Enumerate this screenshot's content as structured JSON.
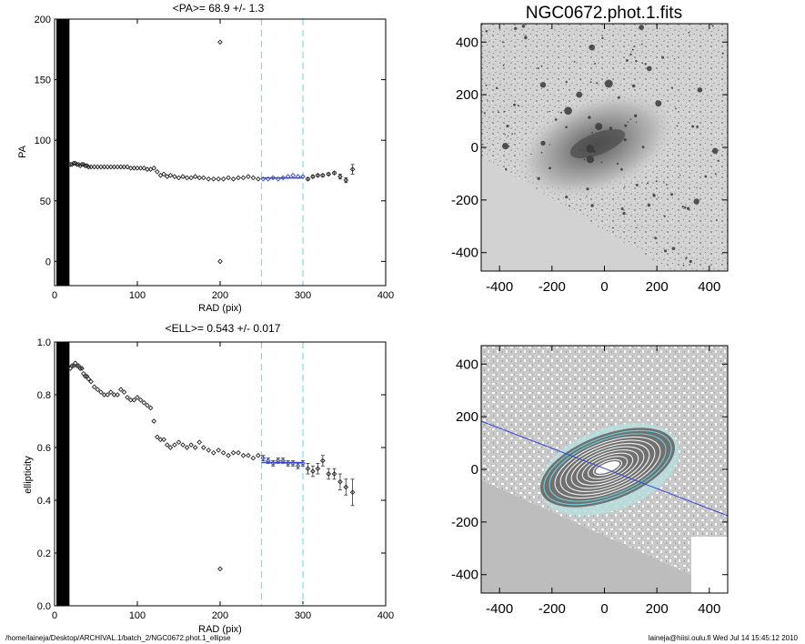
{
  "footer": {
    "path": "/home/laineja/Desktop/ARCHIVAL.1/batch_2/NGC0672.phot.1_ellipse",
    "user_date": "laineja@hiisi.oulu.fi  Wed Jul 14 15:45:12 2010"
  },
  "image_panels": {
    "title": "NGC0672.phot.1.fits",
    "xticks": [
      "-400",
      "-200",
      "0",
      "200",
      "400"
    ],
    "yticks": [
      "400",
      "200",
      "0",
      "-200",
      "-400"
    ],
    "range": [
      -470,
      470
    ]
  },
  "chart_data": [
    {
      "type": "scatter",
      "title": "<PA>=  68.9 +/-   1.3",
      "xlabel": "RAD (pix)",
      "ylabel": "PA",
      "xlim": [
        0,
        400
      ],
      "ylim": [
        -20,
        200
      ],
      "xticks": [
        0,
        100,
        200,
        300,
        400
      ],
      "yticks": [
        0,
        50,
        100,
        150,
        200
      ],
      "xtick_labels": [
        "0",
        "100",
        "200",
        "300",
        "400"
      ],
      "ytick_labels": [
        "0",
        "50",
        "100",
        "150",
        "200"
      ],
      "vlines": [
        250,
        300
      ],
      "fit_range": [
        250,
        300
      ],
      "fit_value": 68.9,
      "series": [
        {
          "x": [
            1,
            3,
            5,
            7,
            9,
            11,
            13,
            15,
            17,
            19,
            21,
            23,
            25,
            27,
            29,
            31,
            33,
            35,
            37,
            39,
            41,
            44,
            48,
            52,
            56,
            60,
            64,
            68,
            72,
            76,
            80,
            84,
            88,
            92,
            96,
            100,
            104,
            108,
            112,
            116,
            120,
            124,
            128,
            132,
            136,
            140,
            145,
            150,
            155,
            160,
            165,
            170,
            175,
            180,
            186,
            192,
            198,
            204,
            210,
            216,
            222,
            228,
            234,
            240,
            246,
            252,
            258,
            264,
            270,
            276,
            282,
            288,
            294,
            300,
            306,
            312,
            318,
            324,
            331,
            338,
            345,
            352,
            360
          ],
          "y": [
            80,
            80,
            81,
            80,
            79,
            80,
            81,
            80,
            79,
            80,
            80,
            81,
            81,
            80,
            80,
            79,
            80,
            80,
            79,
            79,
            78,
            78,
            78,
            78,
            78,
            78,
            78,
            78,
            78,
            78,
            78,
            78,
            78,
            77,
            77,
            77,
            77,
            77,
            76,
            76,
            77,
            74,
            71,
            72,
            70,
            71,
            70,
            69,
            70,
            69,
            69,
            70,
            69,
            69,
            68,
            68,
            68,
            68,
            69,
            68,
            69,
            69,
            70,
            69,
            68,
            68,
            68,
            69,
            68,
            69,
            70,
            71,
            70,
            70,
            68,
            70,
            71,
            71,
            72,
            73,
            70,
            67,
            76
          ],
          "err": [
            0,
            0,
            0,
            0,
            0,
            0,
            0,
            0,
            0,
            0,
            0,
            0,
            0,
            0,
            0,
            0,
            0,
            0,
            0,
            0,
            0,
            0,
            0,
            0,
            0,
            0,
            0,
            0,
            0,
            0,
            0,
            0,
            0,
            0,
            0,
            0,
            0,
            0,
            0,
            0,
            0,
            0,
            0,
            0,
            0,
            0,
            0,
            0,
            0,
            0,
            0,
            0,
            0,
            0,
            0,
            0,
            0,
            0,
            0,
            0,
            0,
            0,
            0,
            0,
            0,
            0,
            0,
            0,
            0,
            0,
            0,
            0,
            0,
            0,
            1,
            1,
            1,
            1,
            1,
            1,
            2,
            2,
            4
          ]
        },
        {
          "name": "outliers",
          "x": [
            200,
            200
          ],
          "y": [
            181,
            0
          ],
          "err": [
            0,
            0
          ]
        }
      ]
    },
    {
      "type": "scatter",
      "title": "<ELL>= 0.543 +/-  0.017",
      "xlabel": "RAD (pix)",
      "ylabel": "ellipticity",
      "xlim": [
        0,
        400
      ],
      "ylim": [
        0,
        1
      ],
      "xticks": [
        0,
        100,
        200,
        300,
        400
      ],
      "yticks": [
        0,
        0.2,
        0.4,
        0.6,
        0.8,
        1
      ],
      "xtick_labels": [
        "0",
        "100",
        "200",
        "300",
        "400"
      ],
      "ytick_labels": [
        "0.0",
        "0.2",
        "0.4",
        "0.6",
        "0.8",
        "1.0"
      ],
      "vlines": [
        250,
        300
      ],
      "fit_range": [
        250,
        300
      ],
      "fit_value": 0.543,
      "series": [
        {
          "x": [
            1,
            3,
            5,
            7,
            9,
            11,
            13,
            15,
            17,
            19,
            21,
            23,
            25,
            27,
            29,
            31,
            33,
            35,
            37,
            39,
            41,
            44,
            48,
            52,
            56,
            60,
            64,
            68,
            72,
            76,
            80,
            84,
            88,
            92,
            96,
            100,
            104,
            108,
            112,
            116,
            120,
            124,
            128,
            132,
            136,
            140,
            145,
            150,
            155,
            160,
            165,
            170,
            175,
            180,
            186,
            192,
            198,
            204,
            210,
            216,
            222,
            228,
            234,
            240,
            246,
            252,
            258,
            264,
            270,
            276,
            282,
            288,
            294,
            300,
            306,
            312,
            318,
            324,
            331,
            338,
            345,
            352,
            360
          ],
          "y": [
            0.89,
            0.89,
            0.9,
            0.88,
            0.9,
            0.89,
            0.88,
            0.9,
            0.89,
            0.9,
            0.91,
            0.91,
            0.92,
            0.91,
            0.91,
            0.9,
            0.9,
            0.88,
            0.87,
            0.87,
            0.86,
            0.85,
            0.83,
            0.82,
            0.81,
            0.8,
            0.8,
            0.81,
            0.8,
            0.8,
            0.82,
            0.81,
            0.79,
            0.78,
            0.78,
            0.79,
            0.78,
            0.77,
            0.76,
            0.75,
            0.7,
            0.64,
            0.63,
            0.63,
            0.61,
            0.6,
            0.61,
            0.62,
            0.61,
            0.6,
            0.61,
            0.6,
            0.62,
            0.6,
            0.59,
            0.58,
            0.59,
            0.58,
            0.57,
            0.58,
            0.58,
            0.57,
            0.57,
            0.56,
            0.57,
            0.56,
            0.55,
            0.54,
            0.55,
            0.55,
            0.54,
            0.54,
            0.53,
            0.54,
            0.52,
            0.51,
            0.52,
            0.55,
            0.5,
            0.5,
            0.47,
            0.45,
            0.43
          ],
          "err": [
            0,
            0,
            0,
            0,
            0,
            0,
            0,
            0,
            0,
            0,
            0,
            0,
            0,
            0,
            0,
            0,
            0,
            0,
            0,
            0,
            0,
            0,
            0,
            0,
            0,
            0,
            0,
            0,
            0,
            0,
            0,
            0,
            0,
            0,
            0,
            0,
            0,
            0,
            0,
            0,
            0,
            0,
            0,
            0,
            0,
            0,
            0,
            0,
            0,
            0,
            0,
            0,
            0,
            0,
            0,
            0,
            0,
            0,
            0,
            0,
            0,
            0,
            0,
            0,
            0,
            0.01,
            0.01,
            0.01,
            0.01,
            0.01,
            0.01,
            0.01,
            0.01,
            0.01,
            0.02,
            0.02,
            0.02,
            0.02,
            0.02,
            0.02,
            0.03,
            0.03,
            0.05
          ]
        },
        {
          "name": "outliers",
          "x": [
            200
          ],
          "y": [
            0.14
          ],
          "err": [
            0
          ]
        }
      ]
    }
  ]
}
